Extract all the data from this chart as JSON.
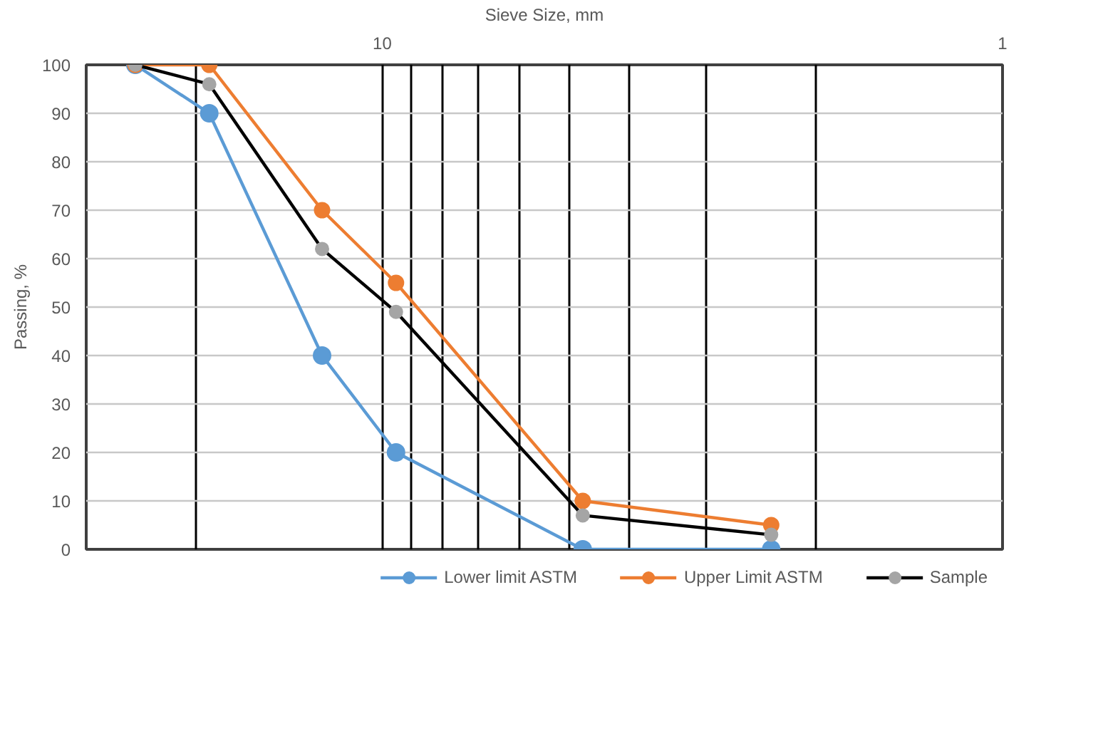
{
  "chart_data": {
    "type": "line",
    "xlabel": "Sieve Size, mm",
    "ylabel": "Passing, %",
    "log": "x",
    "x": [
      25,
      19,
      12.5,
      9.5,
      4.75,
      2.36
    ],
    "xlim": [
      30,
      1
    ],
    "xticks": [
      {
        "value": 20,
        "label": null
      },
      {
        "value": 10,
        "label": "10"
      },
      {
        "value": 9,
        "label": null
      },
      {
        "value": 8,
        "label": null
      },
      {
        "value": 7,
        "label": null
      },
      {
        "value": 6,
        "label": null
      },
      {
        "value": 5,
        "label": null
      },
      {
        "value": 4,
        "label": null
      },
      {
        "value": 3,
        "label": null
      },
      {
        "value": 2,
        "label": null
      },
      {
        "value": 1,
        "label": "1"
      }
    ],
    "ylim": [
      0,
      100
    ],
    "yticks": [
      0,
      10,
      20,
      30,
      40,
      50,
      60,
      70,
      80,
      90,
      100
    ],
    "grid": true,
    "legend": "bottom",
    "marker": "circle",
    "series": [
      {
        "name": "Lower limit ASTM",
        "color": "#5b9bd5",
        "values": [
          100,
          90,
          40,
          20,
          0,
          0
        ]
      },
      {
        "name": "Upper Limit ASTM",
        "color": "#ed7d31",
        "values": [
          100,
          100,
          70,
          55,
          10,
          5
        ]
      },
      {
        "name": "Sample",
        "color": "#000000",
        "colors": [
          "#a5a5a5",
          "#a5a5a5",
          "#a5a5a5",
          "#a5a5a5",
          "#a5a5a5",
          "#a5a5a5"
        ],
        "values": [
          100,
          96,
          62,
          49,
          7,
          3
        ]
      }
    ]
  }
}
